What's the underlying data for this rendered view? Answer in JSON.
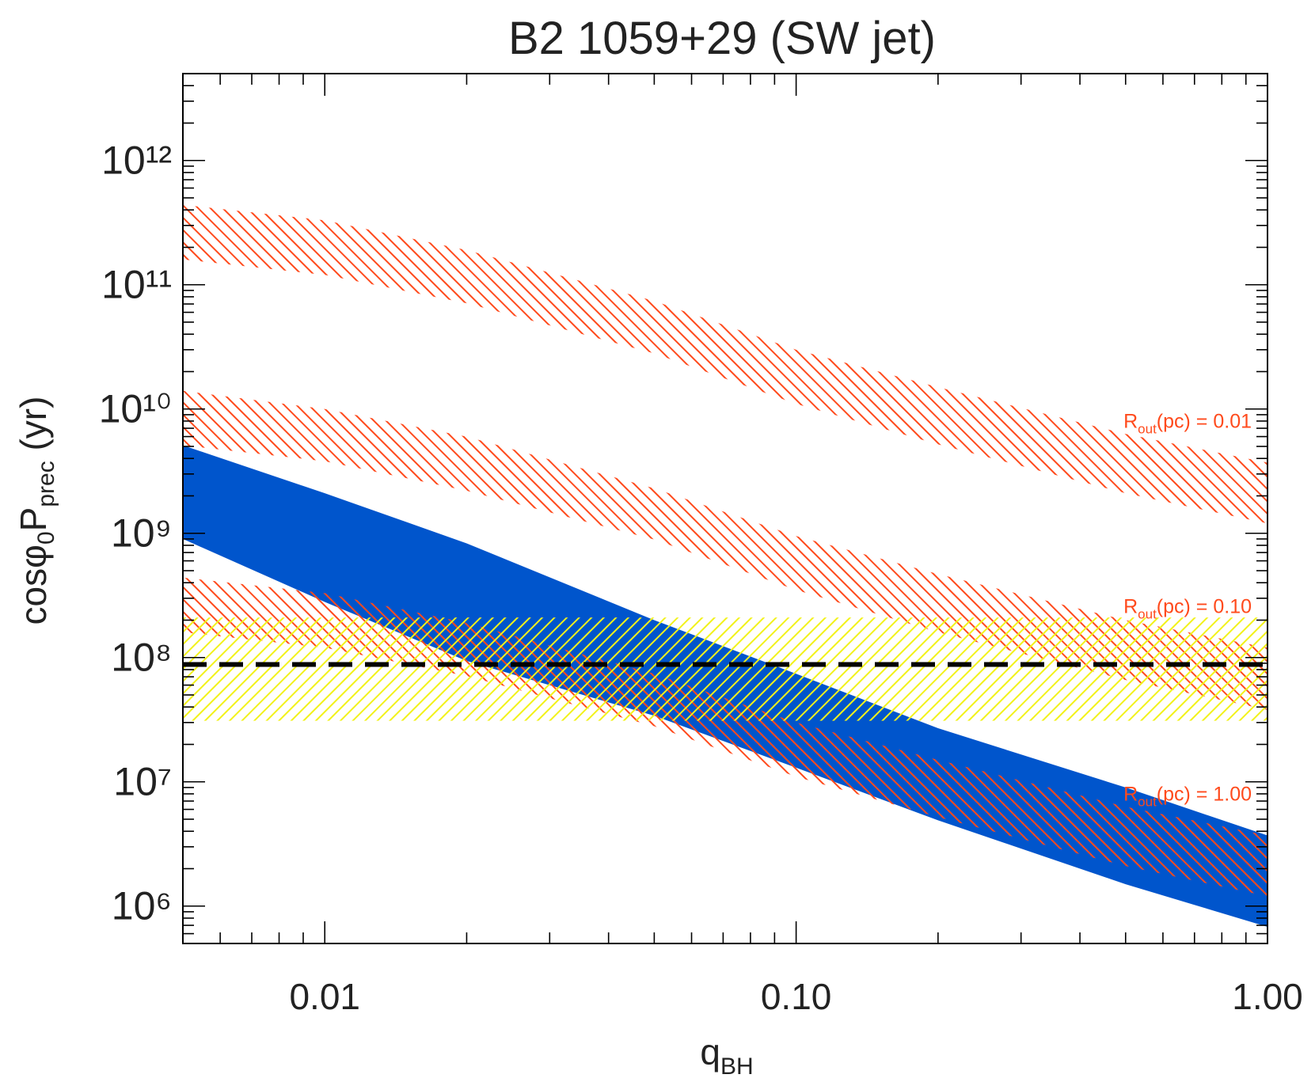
{
  "chart_data": {
    "type": "band",
    "title": "B2 1059+29 (SW jet)",
    "xlabel_parts": [
      "q",
      "BH"
    ],
    "ylabel_parts": [
      "cosφ",
      "0",
      "P",
      "prec",
      " (yr)"
    ],
    "xscale": "log",
    "yscale": "log",
    "xlim": [
      0.005,
      1
    ],
    "ylim": [
      500000,
      5000000000000
    ],
    "xticks": [
      {
        "value": 0.01,
        "label": "0.01"
      },
      {
        "value": 0.1,
        "label": "0.10"
      },
      {
        "value": 1,
        "label": "1.00"
      }
    ],
    "yticks": [
      {
        "value": 1000000,
        "label": "10⁶"
      },
      {
        "value": 10000000,
        "label": "10⁷"
      },
      {
        "value": 100000000,
        "label": "10⁸"
      },
      {
        "value": 1000000000,
        "label": "10⁹"
      },
      {
        "value": 10000000000,
        "label": "10¹⁰"
      },
      {
        "value": 100000000000,
        "label": "10¹¹"
      },
      {
        "value": 1000000000000,
        "label": "10¹²"
      }
    ],
    "minor_ticks": true,
    "x": [
      0.005,
      0.01,
      0.02,
      0.05,
      0.1,
      0.2,
      0.5,
      1
    ],
    "series": [
      {
        "color": "#0055cc",
        "fill": "solid",
        "upper": [
          5100000000,
          2100000000,
          830000000,
          200000000,
          74000000,
          27000000,
          9000000,
          3700000
        ],
        "lower": [
          900000000,
          280000000,
          94000000,
          34000000,
          13000000,
          4900000,
          1500000,
          680000
        ]
      },
      {
        "color": "#ff4a1c",
        "fill": "hatch",
        "hatch_angle": -45,
        "annotation_parts": [
          "R",
          "out",
          "(pc) = 0.01"
        ],
        "upper": [
          440000000000,
          330000000000,
          190000000000,
          74000000000,
          30000000000,
          15000000000,
          6300000000,
          3700000000
        ],
        "lower": [
          160000000000,
          120000000000,
          71000000000,
          28000000000,
          11000000000,
          5200000000,
          2100000000,
          1200000000
        ]
      },
      {
        "color": "#ff4a1c",
        "fill": "hatch",
        "hatch_angle": -45,
        "annotation_parts": [
          "R",
          "out",
          "(pc) = 0.10"
        ],
        "upper": [
          14000000000,
          10000000000,
          6000000000,
          2300000000,
          950000000,
          470000000,
          200000000,
          120000000
        ],
        "lower": [
          5100000000,
          3800000000,
          2200000000,
          890000000,
          350000000,
          160000000,
          66000000,
          38000000
        ]
      },
      {
        "color": "#ff4a1c",
        "fill": "hatch",
        "hatch_angle": -45,
        "annotation_parts": [
          "R",
          "out",
          "(pc) = 1.00"
        ],
        "upper": [
          440000000,
          330000000,
          190000000,
          74000000,
          30000000,
          15000000,
          6300000,
          3700000
        ],
        "lower": [
          160000000,
          120000000,
          71000000,
          28000000,
          11000000,
          5200000,
          2100000,
          1200000
        ]
      }
    ],
    "hband": {
      "color": "#f2f21a",
      "fill": "hatch",
      "hatch_angle": 45,
      "lower": 31000000,
      "upper": 210000000
    },
    "hline": {
      "color": "#000000",
      "value": 88000000,
      "dashed": true
    }
  }
}
